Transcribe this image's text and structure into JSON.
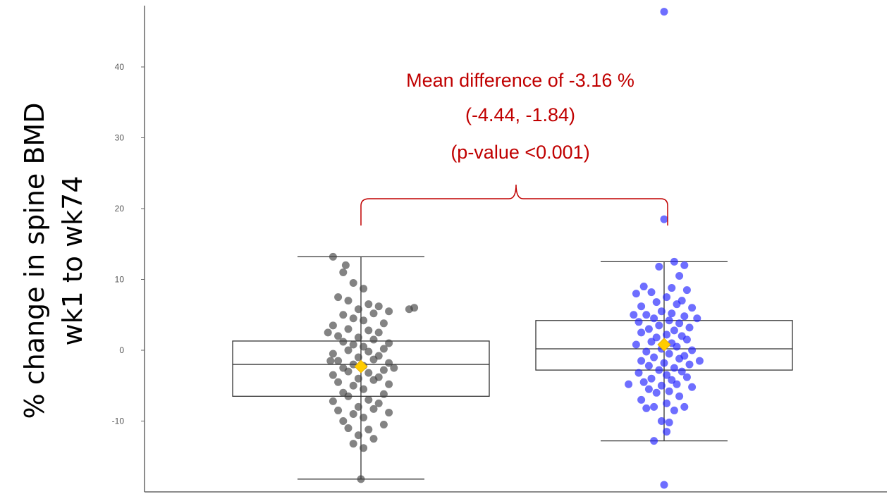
{
  "chart_data": {
    "type": "box",
    "title": "",
    "xlabel": "",
    "ylabel": [
      "% change in spine BMD",
      "wk1 to wk74"
    ],
    "ylim": [
      -20,
      48
    ],
    "yticks": [
      -10,
      0,
      10,
      20,
      30,
      40
    ],
    "ytick_labels": [
      "-10",
      "0",
      "10",
      "20",
      "30",
      "40"
    ],
    "grid": false,
    "legend": "none",
    "groups": [
      {
        "color": "#404040",
        "box": {
          "whisker_low": -18.2,
          "q1": -6.5,
          "median": -2.0,
          "q3": 1.3,
          "whisker_high": 13.2
        },
        "mean": -2.3,
        "points": [
          [
            -0.55,
            13.2
          ],
          [
            -0.35,
            11.0
          ],
          [
            -0.15,
            9.5
          ],
          [
            0.05,
            8.7
          ],
          [
            -0.45,
            7.5
          ],
          [
            -0.25,
            7.0
          ],
          [
            0.15,
            6.5
          ],
          [
            0.35,
            6.2
          ],
          [
            -0.05,
            5.8
          ],
          [
            0.55,
            5.5
          ],
          [
            0.25,
            5.2
          ],
          [
            -0.35,
            5.0
          ],
          [
            -0.15,
            4.5
          ],
          [
            0.05,
            4.2
          ],
          [
            0.45,
            3.8
          ],
          [
            -0.55,
            3.5
          ],
          [
            -0.25,
            3.0
          ],
          [
            0.15,
            2.8
          ],
          [
            0.35,
            2.5
          ],
          [
            -0.45,
            2.0
          ],
          [
            -0.05,
            1.8
          ],
          [
            0.25,
            1.5
          ],
          [
            -0.35,
            1.2
          ],
          [
            0.55,
            1.0
          ],
          [
            -0.15,
            0.8
          ],
          [
            0.05,
            0.5
          ],
          [
            0.45,
            0.2
          ],
          [
            -0.25,
            0.0
          ],
          [
            0.15,
            -0.2
          ],
          [
            -0.55,
            -0.5
          ],
          [
            0.35,
            -0.8
          ],
          [
            -0.05,
            -1.0
          ],
          [
            0.25,
            -1.3
          ],
          [
            -0.45,
            -1.5
          ],
          [
            0.55,
            -1.8
          ],
          [
            -0.15,
            -2.0
          ],
          [
            0.05,
            -2.2
          ],
          [
            -0.35,
            -2.5
          ],
          [
            0.45,
            -2.8
          ],
          [
            -0.25,
            -3.0
          ],
          [
            0.15,
            -3.2
          ],
          [
            -0.55,
            -3.5
          ],
          [
            0.35,
            -3.8
          ],
          [
            -0.05,
            -4.0
          ],
          [
            0.25,
            -4.2
          ],
          [
            -0.45,
            -4.5
          ],
          [
            0.55,
            -4.8
          ],
          [
            -0.15,
            -5.0
          ],
          [
            0.05,
            -5.5
          ],
          [
            -0.35,
            -6.0
          ],
          [
            0.45,
            -6.2
          ],
          [
            -0.25,
            -6.5
          ],
          [
            0.15,
            -7.0
          ],
          [
            -0.55,
            -7.2
          ],
          [
            0.35,
            -7.5
          ],
          [
            -0.05,
            -8.0
          ],
          [
            0.25,
            -8.3
          ],
          [
            -0.45,
            -8.5
          ],
          [
            0.55,
            -8.8
          ],
          [
            -0.15,
            -9.0
          ],
          [
            0.05,
            -9.5
          ],
          [
            -0.35,
            -10.0
          ],
          [
            0.45,
            -10.5
          ],
          [
            -0.25,
            -11.0
          ],
          [
            0.15,
            -11.2
          ],
          [
            -0.05,
            -12.0
          ],
          [
            0.25,
            -12.5
          ],
          [
            -0.15,
            -13.2
          ],
          [
            0.05,
            -13.8
          ],
          [
            0.0,
            -18.2
          ],
          [
            0.95,
            5.8
          ],
          [
            1.05,
            6.0
          ],
          [
            -0.65,
            2.5
          ],
          [
            -0.6,
            -1.5
          ],
          [
            0.65,
            -2.5
          ],
          [
            -0.3,
            12.0
          ]
        ]
      },
      {
        "color": "#2020ff",
        "box": {
          "whisker_low": -12.8,
          "q1": -2.8,
          "median": 0.2,
          "q3": 4.2,
          "whisker_high": 12.5
        },
        "mean": 0.8,
        "points": [
          [
            0.0,
            47.8
          ],
          [
            0.0,
            18.5
          ],
          [
            0.2,
            12.5
          ],
          [
            0.4,
            12.0
          ],
          [
            -0.1,
            11.8
          ],
          [
            0.3,
            10.5
          ],
          [
            -0.4,
            9.0
          ],
          [
            0.15,
            8.8
          ],
          [
            0.45,
            8.5
          ],
          [
            -0.25,
            8.2
          ],
          [
            -0.55,
            8.0
          ],
          [
            0.05,
            7.5
          ],
          [
            0.35,
            7.0
          ],
          [
            -0.15,
            6.8
          ],
          [
            0.25,
            6.5
          ],
          [
            -0.45,
            6.2
          ],
          [
            0.55,
            6.0
          ],
          [
            -0.05,
            5.5
          ],
          [
            0.15,
            5.2
          ],
          [
            -0.35,
            5.0
          ],
          [
            0.4,
            4.8
          ],
          [
            -0.2,
            4.5
          ],
          [
            0.1,
            4.2
          ],
          [
            -0.5,
            4.0
          ],
          [
            0.3,
            3.8
          ],
          [
            -0.1,
            3.5
          ],
          [
            0.5,
            3.2
          ],
          [
            -0.3,
            3.0
          ],
          [
            0.2,
            2.8
          ],
          [
            -0.45,
            2.5
          ],
          [
            0.05,
            2.2
          ],
          [
            0.35,
            2.0
          ],
          [
            -0.15,
            1.8
          ],
          [
            0.45,
            1.5
          ],
          [
            -0.25,
            1.2
          ],
          [
            0.15,
            1.0
          ],
          [
            -0.55,
            0.8
          ],
          [
            0.25,
            0.5
          ],
          [
            -0.05,
            0.2
          ],
          [
            0.55,
            0.0
          ],
          [
            -0.35,
            -0.2
          ],
          [
            0.1,
            -0.5
          ],
          [
            0.4,
            -0.8
          ],
          [
            -0.2,
            -1.0
          ],
          [
            0.3,
            -1.2
          ],
          [
            -0.45,
            -1.5
          ],
          [
            0.0,
            -1.8
          ],
          [
            0.5,
            -2.0
          ],
          [
            -0.3,
            -2.2
          ],
          [
            0.2,
            -2.5
          ],
          [
            -0.1,
            -2.8
          ],
          [
            0.35,
            -3.0
          ],
          [
            -0.5,
            -3.2
          ],
          [
            0.05,
            -3.5
          ],
          [
            0.45,
            -3.8
          ],
          [
            -0.25,
            -4.0
          ],
          [
            0.15,
            -4.2
          ],
          [
            -0.4,
            -4.5
          ],
          [
            0.25,
            -4.8
          ],
          [
            -0.05,
            -5.0
          ],
          [
            0.55,
            -5.2
          ],
          [
            -0.3,
            -5.5
          ],
          [
            0.1,
            -5.8
          ],
          [
            -0.15,
            -6.0
          ],
          [
            0.3,
            -6.5
          ],
          [
            -0.45,
            -7.0
          ],
          [
            0.05,
            -7.5
          ],
          [
            0.4,
            -8.0
          ],
          [
            -0.2,
            -8.0
          ],
          [
            -0.35,
            -8.2
          ],
          [
            0.2,
            -8.5
          ],
          [
            -0.05,
            -10.0
          ],
          [
            0.1,
            -10.2
          ],
          [
            0.05,
            -11.5
          ],
          [
            -0.2,
            -12.8
          ],
          [
            0.0,
            -19.0
          ],
          [
            -0.7,
            -4.8
          ],
          [
            0.7,
            -1.5
          ],
          [
            -0.6,
            5.0
          ],
          [
            0.65,
            4.5
          ]
        ]
      }
    ],
    "annotation": {
      "color": "#c00000",
      "lines": [
        "Mean difference of -3.16 %",
        "(-4.44, -1.84)",
        "(p-value <0.001)"
      ]
    }
  }
}
